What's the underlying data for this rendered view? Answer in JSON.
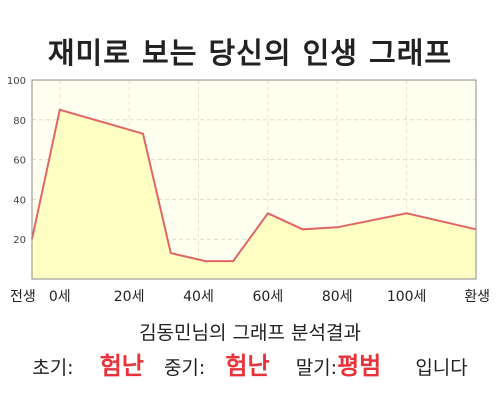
{
  "chart_data": {
    "type": "area",
    "title": "재미로 보는 당신의 인생 그래프",
    "x": [
      -4,
      0,
      12,
      16,
      21,
      25,
      30,
      35,
      40,
      50,
      60
    ],
    "x_tick_positions": [
      -4,
      0,
      10,
      20,
      30,
      40,
      50,
      60
    ],
    "x_tick_labels": [
      "전생",
      "0세",
      "20세",
      "40세",
      "60세",
      "80세",
      "100세",
      "환생"
    ],
    "y_ticks": [
      20,
      40,
      60,
      80,
      100
    ],
    "values": [
      20,
      85,
      73,
      13,
      9,
      9,
      33,
      25,
      26,
      33,
      25
    ],
    "ylim": [
      0,
      100
    ],
    "grid": true,
    "line_color": "#e06666",
    "fill_color": "#ffffc4",
    "plot_background": "#fffff0"
  },
  "summary": {
    "text": "김동민님의 그래프 분석결과"
  },
  "result": {
    "early_label": "초기:",
    "early_value": "험난",
    "middle_label": "중기:",
    "middle_value": "험난",
    "late_label": "말기:",
    "late_value": "평범",
    "suffix": "입니다"
  }
}
